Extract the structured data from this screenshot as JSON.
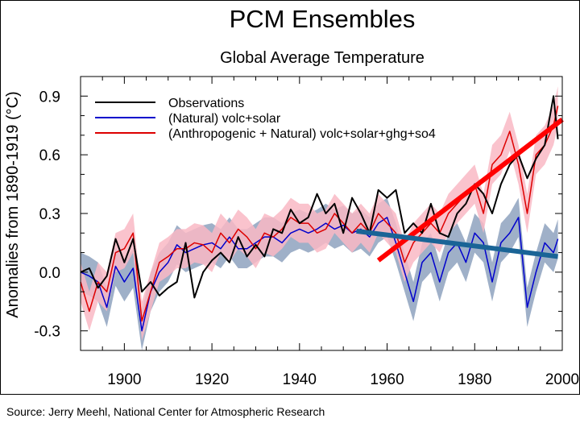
{
  "chart_data": {
    "type": "line",
    "title": "PCM Ensembles",
    "subtitle": "Global Average Temperature",
    "xlabel": "",
    "ylabel": "Anomalies from 1890-1919 (°C)",
    "xlim": [
      1890,
      2000
    ],
    "ylim": [
      -0.4,
      1.0
    ],
    "xticks": [
      1900,
      1920,
      1940,
      1960,
      1980,
      2000
    ],
    "yticks": [
      -0.3,
      0.0,
      0.3,
      0.6,
      0.9
    ],
    "ytick_labels": [
      "-0.3",
      "0.0",
      "0.3",
      "0.6",
      "0.9"
    ],
    "grid": false,
    "legend_placement": "top-left",
    "x": [
      1890,
      1892,
      1894,
      1896,
      1898,
      1900,
      1902,
      1904,
      1906,
      1908,
      1910,
      1912,
      1914,
      1916,
      1918,
      1920,
      1922,
      1924,
      1926,
      1928,
      1930,
      1932,
      1934,
      1936,
      1938,
      1940,
      1942,
      1944,
      1946,
      1948,
      1950,
      1952,
      1954,
      1956,
      1958,
      1960,
      1962,
      1964,
      1966,
      1968,
      1970,
      1972,
      1974,
      1976,
      1978,
      1980,
      1982,
      1984,
      1986,
      1988,
      1990,
      1992,
      1994,
      1996,
      1998,
      1999
    ],
    "series": [
      {
        "name": "Observations",
        "color": "#000000",
        "band_spread": 0,
        "values": [
          0.0,
          0.02,
          -0.08,
          -0.02,
          0.17,
          0.05,
          0.17,
          -0.1,
          -0.05,
          -0.12,
          -0.08,
          -0.05,
          0.15,
          -0.13,
          0.0,
          0.06,
          0.1,
          0.05,
          0.18,
          0.08,
          0.14,
          0.08,
          0.22,
          0.2,
          0.32,
          0.25,
          0.28,
          0.4,
          0.3,
          0.35,
          0.2,
          0.38,
          0.3,
          0.2,
          0.42,
          0.38,
          0.42,
          0.2,
          0.25,
          0.2,
          0.35,
          0.2,
          0.18,
          0.3,
          0.35,
          0.45,
          0.4,
          0.3,
          0.45,
          0.55,
          0.6,
          0.48,
          0.58,
          0.65,
          0.9,
          0.68
        ]
      },
      {
        "name": "(Natural) volc+solar",
        "color": "#0000cc",
        "band_color": "#9fb0c8",
        "band_spread": 0.1,
        "values": [
          0.0,
          -0.02,
          -0.05,
          -0.18,
          0.03,
          -0.05,
          0.02,
          -0.3,
          -0.1,
          0.0,
          0.05,
          0.14,
          0.1,
          0.12,
          0.14,
          0.15,
          0.12,
          0.18,
          0.12,
          0.12,
          0.15,
          0.18,
          0.18,
          0.15,
          0.2,
          0.22,
          0.2,
          0.22,
          0.25,
          0.22,
          0.24,
          0.2,
          0.22,
          0.18,
          0.25,
          0.28,
          0.15,
          0.0,
          -0.15,
          0.05,
          0.1,
          -0.05,
          0.1,
          0.15,
          0.05,
          0.2,
          0.15,
          -0.05,
          0.15,
          0.2,
          0.28,
          -0.18,
          0.0,
          0.15,
          0.1,
          0.17
        ]
      },
      {
        "name": "(Anthropogenic + Natural) volc+solar+ghg+so4",
        "color": "#dd0000",
        "band_color": "#f9b8c4",
        "band_spread": 0.1,
        "values": [
          -0.05,
          -0.2,
          -0.05,
          -0.1,
          0.1,
          0.12,
          0.2,
          -0.25,
          -0.1,
          0.05,
          0.08,
          0.12,
          0.12,
          0.15,
          0.14,
          0.1,
          0.2,
          0.15,
          0.22,
          0.18,
          0.12,
          0.2,
          0.18,
          0.22,
          0.28,
          0.25,
          0.25,
          0.2,
          0.22,
          0.3,
          0.25,
          0.2,
          0.25,
          0.2,
          0.3,
          0.25,
          0.2,
          0.05,
          0.15,
          0.2,
          0.25,
          0.2,
          0.3,
          0.35,
          0.4,
          0.45,
          0.3,
          0.55,
          0.6,
          0.72,
          0.55,
          0.3,
          0.6,
          0.65,
          0.75,
          0.85
        ]
      }
    ],
    "trend_lines": [
      {
        "color": "#ff0000",
        "x": [
          1958,
          2000
        ],
        "y": [
          0.06,
          0.78
        ]
      },
      {
        "color": "#1a6496",
        "x": [
          1953,
          1999
        ],
        "y": [
          0.21,
          0.08
        ]
      }
    ]
  },
  "source": "Source:  Jerry Meehl, National Center for Atmospheric Research"
}
